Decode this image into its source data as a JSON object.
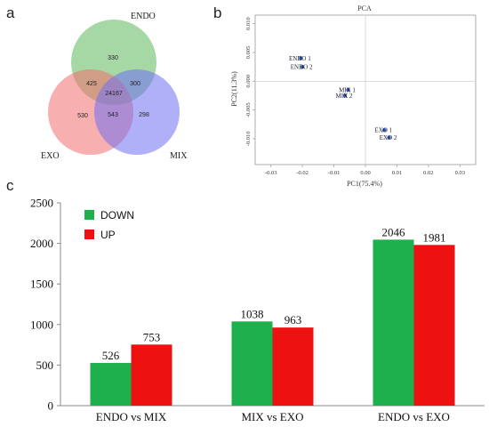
{
  "panels": {
    "a": "a",
    "b": "b",
    "c": "c"
  },
  "chart_data": [
    {
      "type": "venn",
      "sets": [
        "ENDO",
        "EXO",
        "MIX"
      ],
      "regions": {
        "endo_only": 330,
        "endo_exo": 425,
        "endo_mix": 300,
        "all_three": 24167,
        "exo_only": 530,
        "exo_mix": 543,
        "mix_only": 298
      },
      "colors": {
        "ENDO": "#5cb85c",
        "EXO": "#f26d6d",
        "MIX": "#6f6ff2"
      }
    },
    {
      "type": "scatter",
      "title": "PCA",
      "xlabel": "PC1(75.4%)",
      "ylabel": "PC2(11.3%)",
      "xlim": [
        -0.035,
        0.035
      ],
      "ylim": [
        -0.0145,
        0.0115
      ],
      "xticks": [
        -0.03,
        -0.02,
        -0.01,
        0.0,
        0.01,
        0.02,
        0.03
      ],
      "xtick_labels": [
        "-0.03",
        "-0.02",
        "-0.01",
        "0.00",
        "0.01",
        "0.02",
        "0.03"
      ],
      "yticks": [
        -0.01,
        -0.005,
        0.0,
        0.005,
        0.01
      ],
      "ytick_labels": [
        "-0.010",
        "-0.005",
        "0.000",
        "0.005",
        "0.010"
      ],
      "points": [
        {
          "label": "ENDO 1",
          "x": -0.0205,
          "y": 0.004
        },
        {
          "label": "ENDO 2",
          "x": -0.02,
          "y": 0.0025
        },
        {
          "label": "MIX 1",
          "x": -0.0055,
          "y": -0.0015
        },
        {
          "label": "MIX 2",
          "x": -0.0065,
          "y": -0.0025
        },
        {
          "label": "EXO 1",
          "x": 0.006,
          "y": -0.0085
        },
        {
          "label": "EXO 2",
          "x": 0.0075,
          "y": -0.0098
        }
      ],
      "point_color": "#2f56b0",
      "grid": false
    },
    {
      "type": "bar",
      "categories": [
        "ENDO vs MIX",
        "MIX vs EXO",
        "ENDO vs EXO"
      ],
      "series": [
        {
          "name": "DOWN",
          "values": [
            526,
            1038,
            2046
          ],
          "color": "#1db04d"
        },
        {
          "name": "UP",
          "values": [
            753,
            963,
            1981
          ],
          "color": "#ee1111"
        }
      ],
      "ylim": [
        0,
        2500
      ],
      "yticks": [
        0,
        500,
        1000,
        1500,
        2000,
        2500
      ],
      "legend": "top-left"
    }
  ]
}
